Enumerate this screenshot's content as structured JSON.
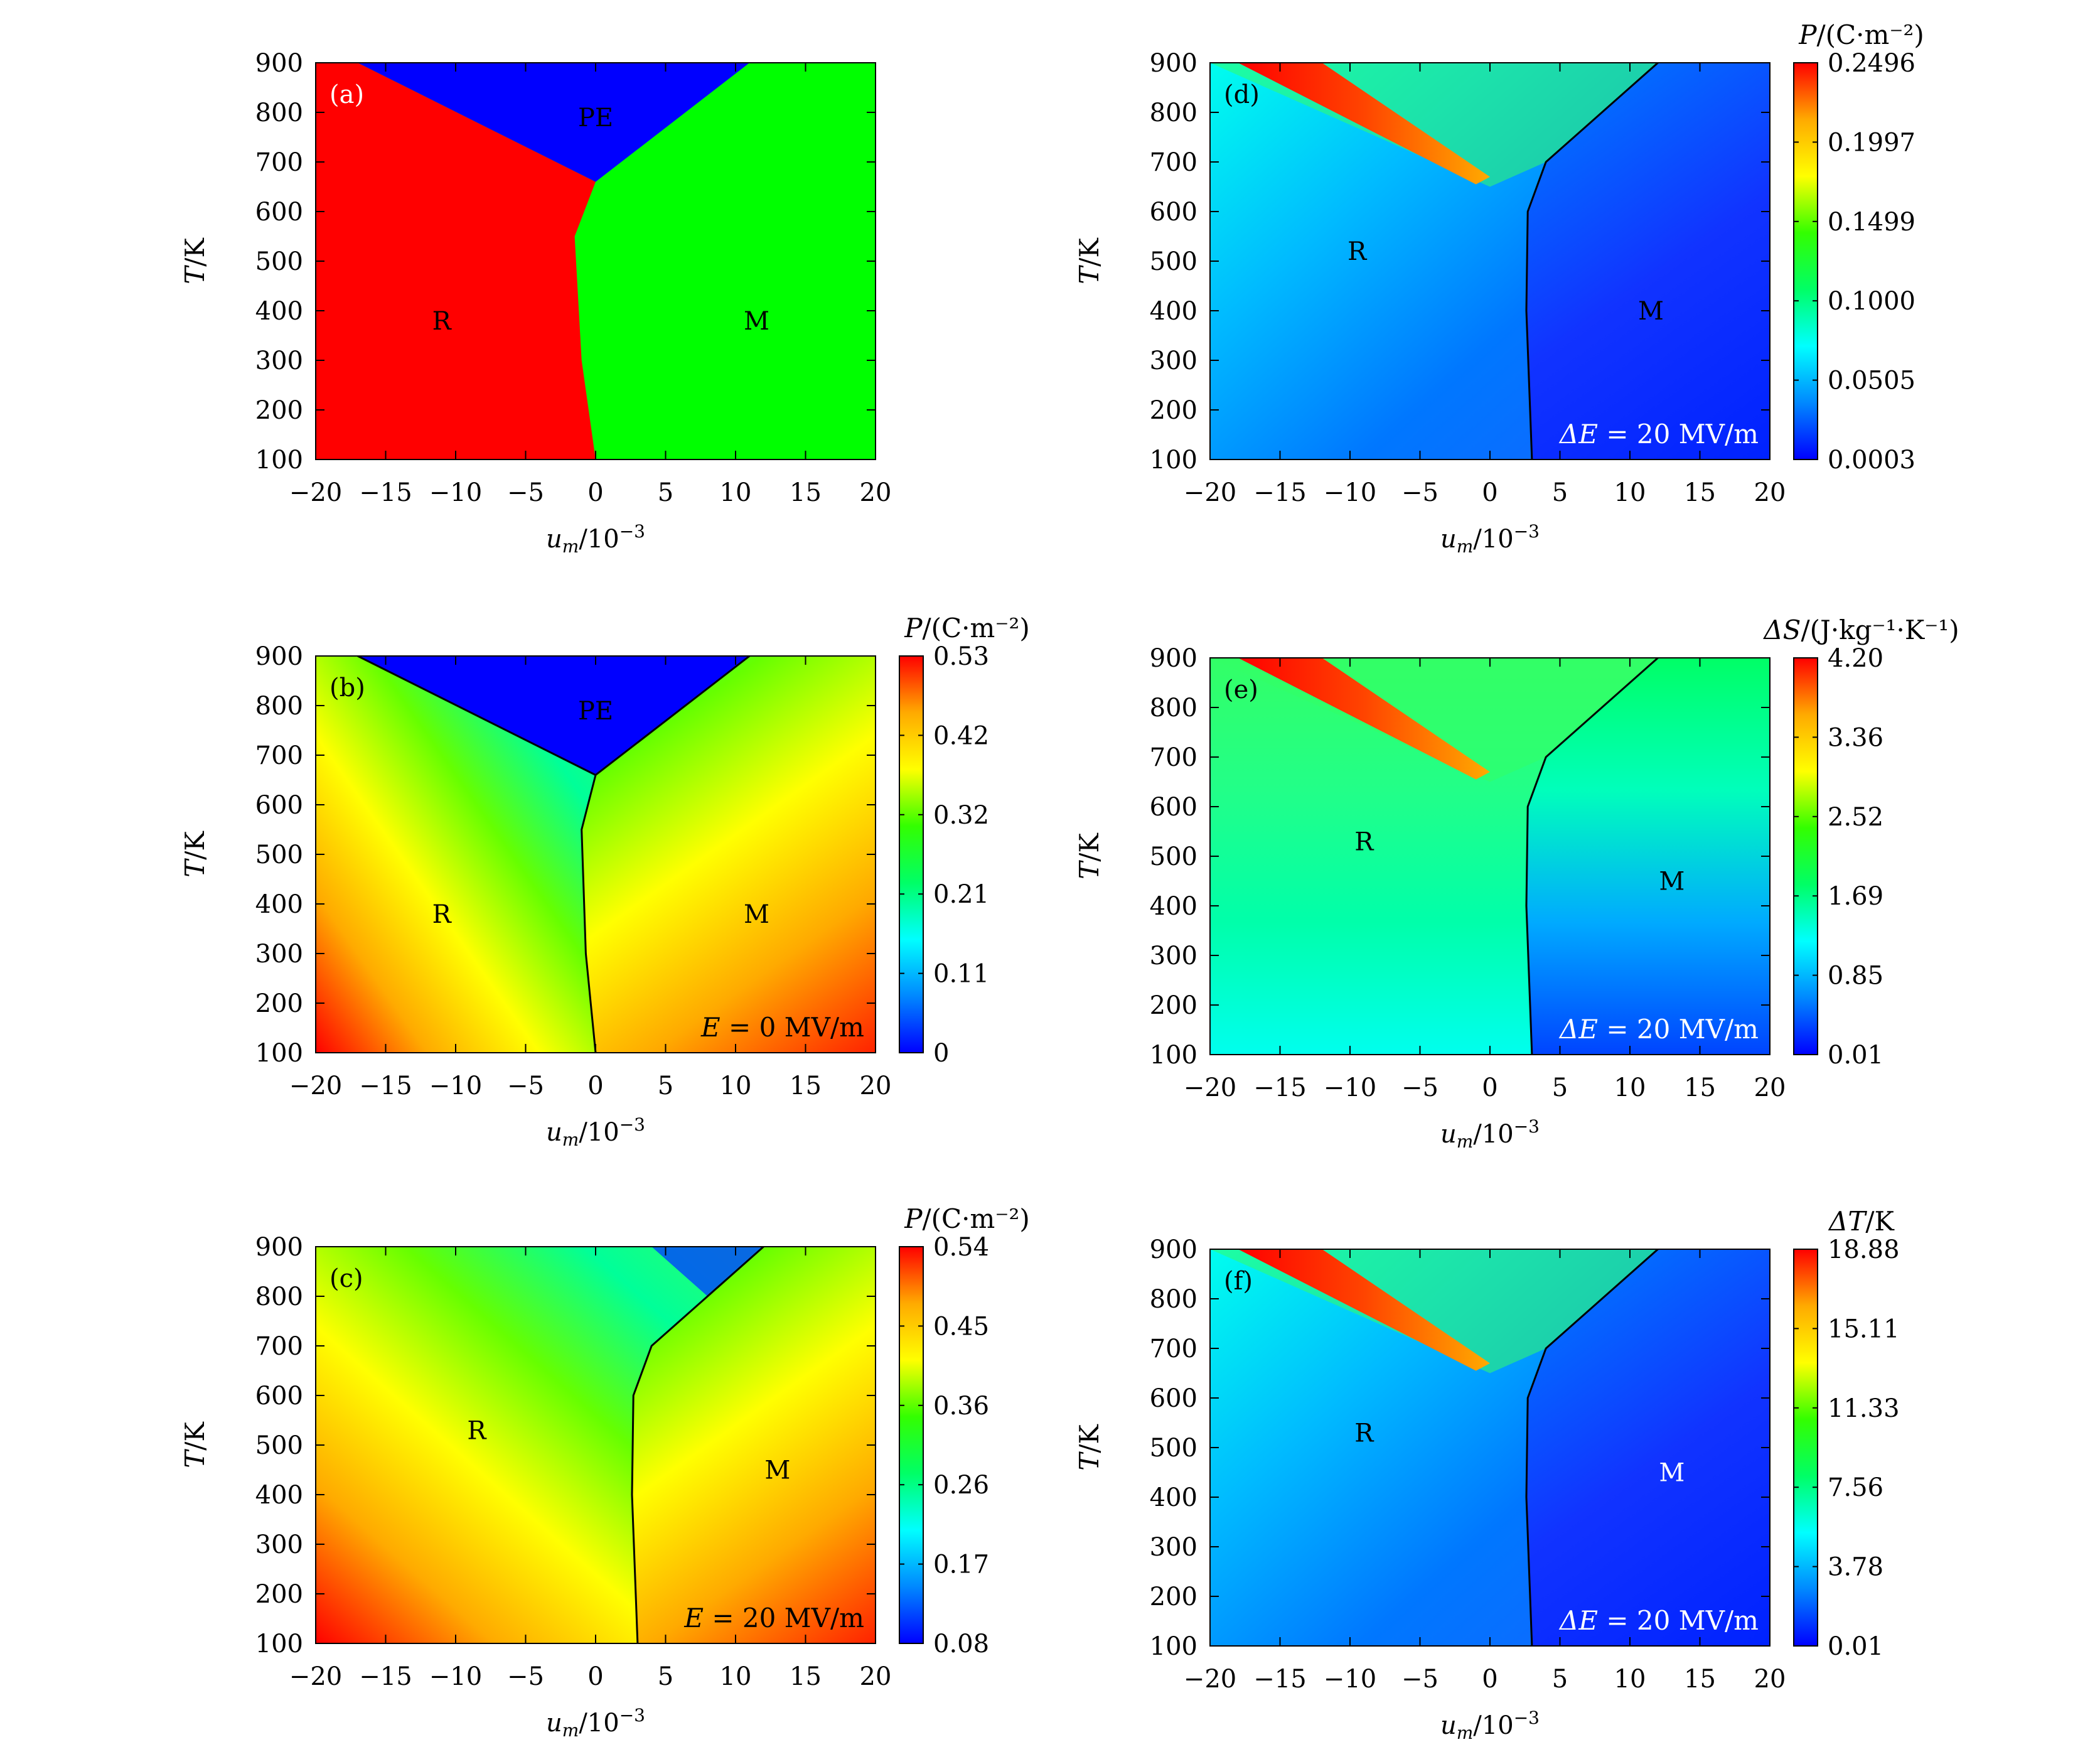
{
  "figure": {
    "colors": {
      "phase_R": "#ff0000",
      "phase_M": "#00ff00",
      "phase_PE": "#0000ff",
      "colormap": [
        "#0000ff",
        "#0088ff",
        "#00ffff",
        "#00ff66",
        "#33ff00",
        "#ffff00",
        "#ffaa00",
        "#ff0000"
      ]
    }
  },
  "chart_data": [
    {
      "id": "a",
      "type": "heatmap",
      "panel_label": "(a)",
      "xlabel": "u_m/10^-3",
      "ylabel": "T/K",
      "xlim": [
        -20,
        20
      ],
      "ylim": [
        100,
        900
      ],
      "x_ticks": [
        "−20",
        "−15",
        "−10",
        "−5",
        "0",
        "5",
        "10",
        "15",
        "20"
      ],
      "y_ticks": [
        "100",
        "200",
        "300",
        "400",
        "500",
        "600",
        "700",
        "800",
        "900"
      ],
      "colorbar": null,
      "annotations": [
        {
          "text": "PE",
          "x": 0,
          "y": 790
        },
        {
          "text": "R",
          "x": -11,
          "y": 380
        },
        {
          "text": "M",
          "x": 11.5,
          "y": 380
        }
      ],
      "boundary_R_PE": [
        [
          -17,
          900
        ],
        [
          0,
          660
        ]
      ],
      "boundary_M_PE": [
        [
          0,
          660
        ],
        [
          11,
          900
        ]
      ],
      "boundary_R_M": [
        [
          0,
          660
        ],
        [
          -1.5,
          550
        ],
        [
          -1,
          300
        ],
        [
          0,
          100
        ]
      ],
      "field_label": ""
    },
    {
      "id": "b",
      "type": "heatmap",
      "panel_label": "(b)",
      "xlabel": "u_m/10^-3",
      "ylabel": "T/K",
      "xlim": [
        -20,
        20
      ],
      "ylim": [
        100,
        900
      ],
      "x_ticks": [
        "−20",
        "−15",
        "−10",
        "−5",
        "0",
        "5",
        "10",
        "15",
        "20"
      ],
      "y_ticks": [
        "100",
        "200",
        "300",
        "400",
        "500",
        "600",
        "700",
        "800",
        "900"
      ],
      "colorbar": {
        "title": "P/(C·m⁻²)",
        "ticks": [
          "0.53",
          "0.42",
          "0.32",
          "0.21",
          "0.11",
          "0"
        ],
        "min": 0,
        "max": 0.53
      },
      "annotations": [
        {
          "text": "PE",
          "x": 0,
          "y": 790
        },
        {
          "text": "R",
          "x": -11,
          "y": 380
        },
        {
          "text": "M",
          "x": 11.5,
          "y": 380
        }
      ],
      "boundary_R_PE": [
        [
          -17,
          900
        ],
        [
          0,
          660
        ]
      ],
      "boundary_M_PE": [
        [
          0,
          660
        ],
        [
          11,
          900
        ]
      ],
      "boundary_R_M": [
        [
          0,
          660
        ],
        [
          -1,
          550
        ],
        [
          -0.7,
          300
        ],
        [
          0,
          100
        ]
      ],
      "field_label": "E = 0 MV/m"
    },
    {
      "id": "c",
      "type": "heatmap",
      "panel_label": "(c)",
      "xlabel": "u_m/10^-3",
      "ylabel": "T/K",
      "xlim": [
        -20,
        20
      ],
      "ylim": [
        100,
        900
      ],
      "x_ticks": [
        "−20",
        "−15",
        "−10",
        "−5",
        "0",
        "5",
        "10",
        "15",
        "20"
      ],
      "y_ticks": [
        "100",
        "200",
        "300",
        "400",
        "500",
        "600",
        "700",
        "800",
        "900"
      ],
      "colorbar": {
        "title": "P/(C·m⁻²)",
        "ticks": [
          "0.54",
          "0.45",
          "0.36",
          "0.26",
          "0.17",
          "0.08"
        ],
        "min": 0.08,
        "max": 0.54
      },
      "annotations": [
        {
          "text": "R",
          "x": -8.5,
          "y": 530
        },
        {
          "text": "M",
          "x": 13,
          "y": 450
        }
      ],
      "boundary_R_M": [
        [
          12,
          900
        ],
        [
          8,
          800
        ],
        [
          4,
          700
        ],
        [
          2.7,
          600
        ],
        [
          2.6,
          400
        ],
        [
          3,
          100
        ]
      ],
      "field_label": "E = 20 MV/m"
    },
    {
      "id": "d",
      "type": "heatmap",
      "panel_label": "(d)",
      "xlabel": "u_m/10^-3",
      "ylabel": "T/K",
      "xlim": [
        -20,
        20
      ],
      "ylim": [
        100,
        900
      ],
      "x_ticks": [
        "−20",
        "−15",
        "−10",
        "−5",
        "0",
        "5",
        "10",
        "15",
        "20"
      ],
      "y_ticks": [
        "100",
        "200",
        "300",
        "400",
        "500",
        "600",
        "700",
        "800",
        "900"
      ],
      "colorbar": {
        "title": "P/(C·m⁻²)",
        "ticks": [
          "0.2496",
          "0.1997",
          "0.1499",
          "0.1000",
          "0.0505",
          "0.0003"
        ],
        "min": 0.0003,
        "max": 0.2496
      },
      "annotations": [
        {
          "text": "R",
          "x": -9.5,
          "y": 520
        },
        {
          "text": "M",
          "x": 11.5,
          "y": 400
        }
      ],
      "boundary_R_M": [
        [
          12,
          900
        ],
        [
          8,
          800
        ],
        [
          4,
          700
        ],
        [
          2.7,
          600
        ],
        [
          2.6,
          400
        ],
        [
          3,
          100
        ]
      ],
      "field_label": "ΔE = 20 MV/m"
    },
    {
      "id": "e",
      "type": "heatmap",
      "panel_label": "(e)",
      "xlabel": "u_m/10^-3",
      "ylabel": "T/K",
      "xlim": [
        -20,
        20
      ],
      "ylim": [
        100,
        900
      ],
      "x_ticks": [
        "−20",
        "−15",
        "−10",
        "−5",
        "0",
        "5",
        "10",
        "15",
        "20"
      ],
      "y_ticks": [
        "100",
        "200",
        "300",
        "400",
        "500",
        "600",
        "700",
        "800",
        "900"
      ],
      "colorbar": {
        "title": "ΔS/(J·kg⁻¹·K⁻¹)",
        "ticks": [
          "4.20",
          "3.36",
          "2.52",
          "1.69",
          "0.85",
          "0.01"
        ],
        "min": 0.01,
        "max": 4.2
      },
      "annotations": [
        {
          "text": "R",
          "x": -9,
          "y": 530
        },
        {
          "text": "M",
          "x": 13,
          "y": 450
        }
      ],
      "boundary_R_M": [
        [
          12,
          900
        ],
        [
          8,
          800
        ],
        [
          4,
          700
        ],
        [
          2.7,
          600
        ],
        [
          2.6,
          400
        ],
        [
          3,
          100
        ]
      ],
      "field_label": "ΔE = 20 MV/m"
    },
    {
      "id": "f",
      "type": "heatmap",
      "panel_label": "(f)",
      "xlabel": "u_m/10^-3",
      "ylabel": "T/K",
      "xlim": [
        -20,
        20
      ],
      "ylim": [
        100,
        900
      ],
      "x_ticks": [
        "−20",
        "−15",
        "−10",
        "−5",
        "0",
        "5",
        "10",
        "15",
        "20"
      ],
      "y_ticks": [
        "100",
        "200",
        "300",
        "400",
        "500",
        "600",
        "700",
        "800",
        "900"
      ],
      "colorbar": {
        "title": "ΔT/K",
        "ticks": [
          "18.88",
          "15.11",
          "11.33",
          "7.56",
          "3.78",
          "0.01"
        ],
        "min": 0.01,
        "max": 18.88
      },
      "annotations": [
        {
          "text": "R",
          "x": -9,
          "y": 530
        },
        {
          "text": "M",
          "x": 13,
          "y": 450
        }
      ],
      "boundary_R_M": [
        [
          12,
          900
        ],
        [
          8,
          800
        ],
        [
          4,
          700
        ],
        [
          2.7,
          600
        ],
        [
          2.6,
          400
        ],
        [
          3,
          100
        ]
      ],
      "field_label": "ΔE = 20 MV/m"
    }
  ]
}
